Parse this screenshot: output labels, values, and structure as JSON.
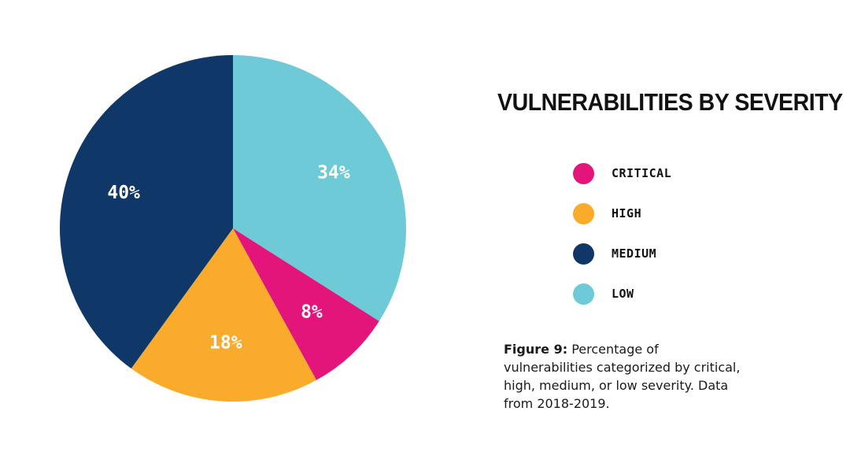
{
  "chart_data": {
    "type": "pie",
    "title": "VULNERABILITIES BY SEVERITY",
    "slices": [
      {
        "name": "LOW",
        "value": 34,
        "label": "34%",
        "color": "#6ecad6"
      },
      {
        "name": "CRITICAL",
        "value": 8,
        "label": "8%",
        "color": "#e3157b"
      },
      {
        "name": "HIGH",
        "value": 18,
        "label": "18%",
        "color": "#fbab2c"
      },
      {
        "name": "MEDIUM",
        "value": 40,
        "label": "40%",
        "color": "#0f3767"
      }
    ],
    "legend": {
      "placement": "right",
      "items": [
        {
          "label": "CRITICAL",
          "color": "#e3157b"
        },
        {
          "label": "HIGH",
          "color": "#fbab2c"
        },
        {
          "label": "MEDIUM",
          "color": "#0f3767"
        },
        {
          "label": "LOW",
          "color": "#6ecad6"
        }
      ]
    }
  },
  "caption": {
    "prefix": "Figure 9:",
    "text": " Percentage of vulnerabilities categorized by critical, high, medium, or low severity. Data from 2018-2019."
  }
}
